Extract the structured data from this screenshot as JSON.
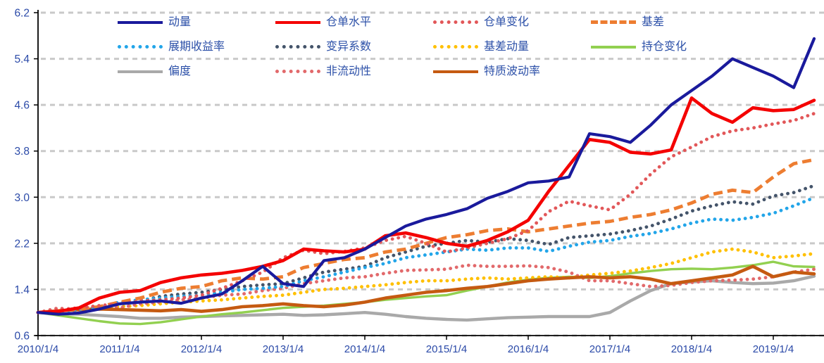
{
  "chart": {
    "background": "#FFFFFF",
    "axis_color": "#000000",
    "gridline_color": "#C9C9C9",
    "tick_label_color": "#2B4AA8",
    "legend_text_color": "#2C50A8"
  },
  "chart_data": {
    "type": "line",
    "title": "",
    "xlabel": "",
    "ylabel": "",
    "ylim": [
      0.6,
      6.2
    ],
    "grid": "horizontal-dashed",
    "legend_position": "top-inside",
    "y_ticks": [
      6.2,
      5.4,
      4.6,
      3.8,
      3.0,
      2.2,
      1.4,
      0.6
    ],
    "x_tick_labels": [
      "2010/1/4",
      "2011/1/4",
      "2012/1/4",
      "2013/1/4",
      "2014/1/4",
      "2015/1/4",
      "2016/1/4",
      "2017/1/4",
      "2018/1/4",
      "2019/1/4"
    ],
    "x": [
      2010.0,
      2010.25,
      2010.5,
      2010.75,
      2011.0,
      2011.25,
      2011.5,
      2011.75,
      2012.0,
      2012.25,
      2012.5,
      2012.75,
      2013.0,
      2013.25,
      2013.5,
      2013.75,
      2014.0,
      2014.25,
      2014.5,
      2014.75,
      2015.0,
      2015.25,
      2015.5,
      2015.75,
      2016.0,
      2016.25,
      2016.5,
      2016.75,
      2017.0,
      2017.25,
      2017.5,
      2017.75,
      2018.0,
      2018.25,
      2018.5,
      2018.75,
      2019.0,
      2019.25,
      2019.5
    ],
    "series": [
      {
        "name": "动量",
        "color": "#1A1A9C",
        "style": "solid",
        "width": 4.2,
        "values": [
          1.0,
          0.97,
          0.99,
          1.06,
          1.15,
          1.18,
          1.2,
          1.16,
          1.25,
          1.32,
          1.55,
          1.8,
          1.5,
          1.45,
          1.9,
          1.95,
          2.1,
          2.3,
          2.5,
          2.62,
          2.7,
          2.8,
          2.98,
          3.1,
          3.25,
          3.28,
          3.35,
          4.1,
          4.05,
          3.95,
          4.25,
          4.6,
          4.85,
          5.1,
          5.4,
          5.25,
          5.1,
          4.9,
          5.75
        ]
      },
      {
        "name": "仓单水平",
        "color": "#F40000",
        "style": "solid",
        "width": 4.6,
        "values": [
          1.0,
          1.02,
          1.08,
          1.25,
          1.35,
          1.38,
          1.52,
          1.6,
          1.65,
          1.68,
          1.73,
          1.8,
          1.9,
          2.1,
          2.07,
          2.05,
          2.1,
          2.33,
          2.38,
          2.3,
          2.2,
          2.15,
          2.25,
          2.4,
          2.6,
          3.1,
          3.55,
          4.0,
          3.95,
          3.78,
          3.75,
          3.82,
          4.72,
          4.45,
          4.3,
          4.55,
          4.5,
          4.52,
          4.68
        ]
      },
      {
        "name": "仓单变化",
        "color": "#E25759",
        "style": "dotted",
        "width": 4.8,
        "values": [
          1.0,
          1.05,
          1.08,
          1.12,
          1.15,
          1.2,
          1.22,
          1.25,
          1.3,
          1.42,
          1.55,
          1.7,
          1.95,
          2.08,
          2.02,
          2.06,
          2.12,
          2.25,
          2.32,
          2.2,
          2.05,
          2.12,
          2.2,
          2.28,
          2.42,
          2.75,
          2.93,
          2.85,
          2.78,
          3.05,
          3.4,
          3.7,
          3.87,
          4.05,
          4.15,
          4.2,
          4.27,
          4.33,
          4.45
        ]
      },
      {
        "name": "基差",
        "color": "#ED7D31",
        "style": "dashed",
        "width": 4.8,
        "values": [
          1.0,
          1.03,
          1.06,
          1.1,
          1.18,
          1.25,
          1.35,
          1.42,
          1.45,
          1.55,
          1.6,
          1.58,
          1.62,
          1.78,
          1.85,
          1.92,
          1.95,
          2.05,
          2.1,
          2.2,
          2.3,
          2.35,
          2.42,
          2.45,
          2.4,
          2.45,
          2.5,
          2.55,
          2.58,
          2.65,
          2.7,
          2.78,
          2.9,
          3.05,
          3.12,
          3.08,
          3.35,
          3.58,
          3.65
        ]
      },
      {
        "name": "展期收益率",
        "color": "#22A5E9",
        "style": "dotted",
        "width": 4.8,
        "values": [
          1.0,
          1.02,
          1.05,
          1.1,
          1.18,
          1.22,
          1.25,
          1.28,
          1.3,
          1.35,
          1.4,
          1.42,
          1.45,
          1.55,
          1.62,
          1.7,
          1.78,
          1.85,
          1.95,
          2.0,
          2.05,
          2.1,
          2.08,
          2.12,
          2.12,
          2.06,
          2.15,
          2.22,
          2.25,
          2.32,
          2.37,
          2.45,
          2.55,
          2.62,
          2.6,
          2.65,
          2.72,
          2.85,
          2.99
        ]
      },
      {
        "name": "变异系数",
        "color": "#44546A",
        "style": "dotted",
        "width": 4.8,
        "values": [
          1.0,
          1.03,
          1.06,
          1.1,
          1.15,
          1.2,
          1.28,
          1.32,
          1.35,
          1.4,
          1.45,
          1.48,
          1.5,
          1.6,
          1.7,
          1.75,
          1.8,
          1.95,
          2.05,
          2.15,
          2.2,
          2.25,
          2.22,
          2.28,
          2.25,
          2.18,
          2.3,
          2.33,
          2.36,
          2.42,
          2.5,
          2.62,
          2.76,
          2.85,
          2.92,
          2.88,
          3.02,
          3.08,
          3.2
        ]
      },
      {
        "name": "基差动量",
        "color": "#FFC000",
        "style": "dotted",
        "width": 4.8,
        "values": [
          1.0,
          1.02,
          1.04,
          1.06,
          1.1,
          1.12,
          1.15,
          1.18,
          1.2,
          1.22,
          1.25,
          1.28,
          1.3,
          1.35,
          1.4,
          1.42,
          1.45,
          1.48,
          1.52,
          1.55,
          1.55,
          1.58,
          1.6,
          1.58,
          1.6,
          1.62,
          1.6,
          1.65,
          1.68,
          1.72,
          1.78,
          1.85,
          1.95,
          2.05,
          2.1,
          2.05,
          1.95,
          1.98,
          2.02
        ]
      },
      {
        "name": "持仓变化",
        "color": "#92D050",
        "style": "solid",
        "width": 3.4,
        "values": [
          1.0,
          0.95,
          0.9,
          0.85,
          0.81,
          0.8,
          0.83,
          0.88,
          0.93,
          0.97,
          1.0,
          1.04,
          1.08,
          1.1,
          1.12,
          1.15,
          1.18,
          1.22,
          1.25,
          1.28,
          1.3,
          1.38,
          1.45,
          1.52,
          1.57,
          1.6,
          1.62,
          1.6,
          1.63,
          1.68,
          1.72,
          1.75,
          1.76,
          1.75,
          1.78,
          1.82,
          1.88,
          1.8,
          1.79
        ]
      },
      {
        "name": "偏度",
        "color": "#A9A9A9",
        "style": "solid",
        "width": 4.4,
        "values": [
          1.0,
          0.98,
          0.97,
          0.95,
          0.93,
          0.9,
          0.9,
          0.92,
          0.93,
          0.94,
          0.95,
          0.96,
          0.97,
          0.95,
          0.96,
          0.98,
          1.0,
          0.97,
          0.93,
          0.9,
          0.88,
          0.87,
          0.89,
          0.91,
          0.92,
          0.93,
          0.93,
          0.93,
          1.0,
          1.2,
          1.38,
          1.5,
          1.53,
          1.55,
          1.52,
          1.5,
          1.51,
          1.55,
          1.63
        ]
      },
      {
        "name": "非流动性",
        "color": "#E2696B",
        "style": "dotted",
        "width": 4.8,
        "values": [
          1.0,
          1.08,
          1.02,
          1.1,
          1.08,
          1.15,
          1.18,
          1.22,
          1.25,
          1.3,
          1.32,
          1.38,
          1.42,
          1.5,
          1.55,
          1.6,
          1.62,
          1.68,
          1.73,
          1.74,
          1.75,
          1.82,
          1.8,
          1.8,
          1.81,
          1.78,
          1.7,
          1.55,
          1.55,
          1.5,
          1.45,
          1.47,
          1.52,
          1.55,
          1.56,
          1.58,
          1.62,
          1.7,
          1.75
        ]
      },
      {
        "name": "特质波动率",
        "color": "#C55A11",
        "style": "solid",
        "width": 4.6,
        "values": [
          1.0,
          1.03,
          1.05,
          1.06,
          1.05,
          1.04,
          1.03,
          1.05,
          1.02,
          1.05,
          1.1,
          1.12,
          1.15,
          1.12,
          1.1,
          1.13,
          1.18,
          1.25,
          1.3,
          1.35,
          1.38,
          1.42,
          1.45,
          1.5,
          1.55,
          1.58,
          1.6,
          1.62,
          1.6,
          1.62,
          1.58,
          1.5,
          1.55,
          1.6,
          1.65,
          1.8,
          1.62,
          1.7,
          1.67
        ]
      }
    ]
  }
}
